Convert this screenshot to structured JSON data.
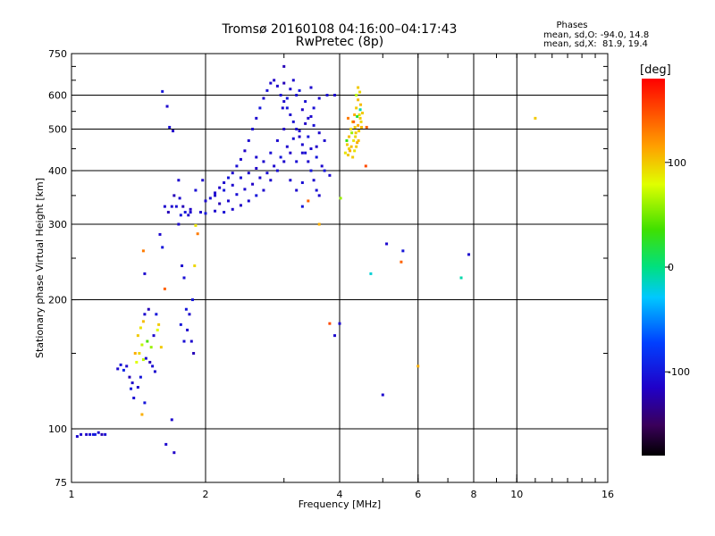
{
  "title": "Tromsø 20160108 04:16:00–04:17:43",
  "subtitle": "RwPretec (8p)",
  "stats": {
    "title": "Phases",
    "line_o": "mean, sd,O: -94.0, 14.8",
    "line_x": "mean, sd,X:  81.9, 19.4"
  },
  "colorbar": {
    "unit": "[deg]",
    "ticks": [
      {
        "value": 100,
        "label": "100"
      },
      {
        "value": 0,
        "label": "0"
      },
      {
        "value": -100,
        "label": "-100"
      }
    ],
    "range": [
      -180,
      180
    ]
  },
  "chart_data": {
    "type": "scatter",
    "xlabel": "Frequency [MHz]",
    "ylabel": "Stationary phase Virtual Height [km]",
    "xscale": "log",
    "yscale": "log",
    "xlim": [
      1,
      16
    ],
    "ylim": [
      75,
      750
    ],
    "xticks": [
      {
        "v": 1,
        "label": "1"
      },
      {
        "v": 2,
        "label": "2"
      },
      {
        "v": 4,
        "label": "4"
      },
      {
        "v": 6,
        "label": "6"
      },
      {
        "v": 8,
        "label": "8"
      },
      {
        "v": 10,
        "label": "10"
      },
      {
        "v": 16,
        "label": "16"
      }
    ],
    "yticks": [
      {
        "v": 75,
        "label": "75"
      },
      {
        "v": 100,
        "label": "100"
      },
      {
        "v": 200,
        "label": "200"
      },
      {
        "v": 300,
        "label": "300"
      },
      {
        "v": 400,
        "label": "400"
      },
      {
        "v": 500,
        "label": "500"
      },
      {
        "v": 600,
        "label": "600"
      },
      {
        "v": 750,
        "label": "750"
      }
    ],
    "grid": true,
    "grid_x": [
      2,
      4,
      6,
      8,
      10
    ],
    "grid_y": [
      100,
      200,
      300,
      400,
      500,
      600
    ],
    "points": [
      [
        1.05,
        97,
        -110
      ],
      [
        1.08,
        97,
        -115
      ],
      [
        1.1,
        97,
        -105
      ],
      [
        1.12,
        97,
        -100
      ],
      [
        1.15,
        98,
        -110
      ],
      [
        1.17,
        97,
        -120
      ],
      [
        1.19,
        97,
        -105
      ],
      [
        1.03,
        96,
        -110
      ],
      [
        1.13,
        97,
        -95
      ],
      [
        1.27,
        138,
        -110
      ],
      [
        1.29,
        141,
        -100
      ],
      [
        1.31,
        137,
        -90
      ],
      [
        1.33,
        140,
        -110
      ],
      [
        1.35,
        132,
        -120
      ],
      [
        1.37,
        128,
        -110
      ],
      [
        1.36,
        124,
        -95
      ],
      [
        1.38,
        118,
        -105
      ],
      [
        1.4,
        143,
        80
      ],
      [
        1.42,
        150,
        95
      ],
      [
        1.44,
        157,
        70
      ],
      [
        1.41,
        165,
        100
      ],
      [
        1.43,
        172,
        90
      ],
      [
        1.45,
        178,
        105
      ],
      [
        1.46,
        185,
        -110
      ],
      [
        1.39,
        150,
        110
      ],
      [
        1.47,
        146,
        -110
      ],
      [
        1.5,
        143,
        -120
      ],
      [
        1.52,
        140,
        -105
      ],
      [
        1.54,
        136,
        -110
      ],
      [
        1.48,
        160,
        40
      ],
      [
        1.51,
        155,
        60
      ],
      [
        1.53,
        165,
        -110
      ],
      [
        1.55,
        185,
        -100
      ],
      [
        1.57,
        175,
        100
      ],
      [
        1.49,
        190,
        -120
      ],
      [
        1.44,
        108,
        110
      ],
      [
        1.46,
        115,
        -100
      ],
      [
        1.45,
        260,
        130
      ],
      [
        1.46,
        230,
        -110
      ],
      [
        1.59,
        155,
        100
      ],
      [
        1.56,
        170,
        80
      ],
      [
        1.41,
        125,
        -110
      ],
      [
        1.43,
        132,
        -100
      ],
      [
        1.45,
        145,
        70
      ],
      [
        1.6,
        612,
        -100
      ],
      [
        1.64,
        565,
        -110
      ],
      [
        1.66,
        505,
        -105
      ],
      [
        1.69,
        495,
        -115
      ],
      [
        1.62,
        330,
        -110
      ],
      [
        1.65,
        320,
        -120
      ],
      [
        1.58,
        284,
        -110
      ],
      [
        1.6,
        265,
        -100
      ],
      [
        1.62,
        212,
        140
      ],
      [
        1.75,
        345,
        -110
      ],
      [
        1.72,
        330,
        -105
      ],
      [
        1.78,
        330,
        -120
      ],
      [
        1.74,
        300,
        -110
      ],
      [
        1.8,
        320,
        -100
      ],
      [
        1.83,
        315,
        -110
      ],
      [
        1.85,
        325,
        -115
      ],
      [
        1.77,
        240,
        -110
      ],
      [
        1.79,
        225,
        -105
      ],
      [
        1.81,
        190,
        -100
      ],
      [
        1.84,
        185,
        -110
      ],
      [
        1.86,
        160,
        -110
      ],
      [
        1.88,
        150,
        -120
      ],
      [
        1.79,
        160,
        -105
      ],
      [
        1.82,
        170,
        -110
      ],
      [
        1.76,
        175,
        -100
      ],
      [
        1.9,
        298,
        90
      ],
      [
        1.92,
        285,
        130
      ],
      [
        1.87,
        200,
        -100
      ],
      [
        1.89,
        240,
        95
      ],
      [
        1.68,
        105,
        -110
      ],
      [
        1.63,
        92,
        -110
      ],
      [
        1.7,
        88,
        -115
      ],
      [
        1.74,
        380,
        -110
      ],
      [
        2.0,
        340,
        -110
      ],
      [
        2.05,
        345,
        -105
      ],
      [
        2.1,
        355,
        -110
      ],
      [
        2.15,
        365,
        -115
      ],
      [
        2.2,
        375,
        -110
      ],
      [
        2.25,
        385,
        -100
      ],
      [
        2.3,
        395,
        -110
      ],
      [
        2.35,
        410,
        -105
      ],
      [
        2.4,
        425,
        -110
      ],
      [
        2.45,
        445,
        -115
      ],
      [
        2.5,
        470,
        -110
      ],
      [
        2.55,
        500,
        -105
      ],
      [
        2.6,
        530,
        -110
      ],
      [
        2.65,
        560,
        -100
      ],
      [
        2.7,
        590,
        -110
      ],
      [
        2.75,
        615,
        -105
      ],
      [
        2.8,
        640,
        -110
      ],
      [
        2.85,
        650,
        -115
      ],
      [
        2.9,
        630,
        -110
      ],
      [
        2.95,
        600,
        -105
      ],
      [
        3.0,
        580,
        -110
      ],
      [
        3.05,
        560,
        -100
      ],
      [
        3.1,
        540,
        -110
      ],
      [
        3.15,
        520,
        -105
      ],
      [
        3.2,
        500,
        -110
      ],
      [
        3.25,
        480,
        -115
      ],
      [
        3.3,
        460,
        -110
      ],
      [
        3.35,
        440,
        -105
      ],
      [
        3.4,
        420,
        -110
      ],
      [
        3.45,
        400,
        -100
      ],
      [
        3.5,
        380,
        -110
      ],
      [
        3.55,
        360,
        -105
      ],
      [
        3.6,
        350,
        -110
      ],
      [
        3.1,
        620,
        -110
      ],
      [
        3.2,
        600,
        -105
      ],
      [
        3.05,
        590,
        -100
      ],
      [
        2.98,
        560,
        -110
      ],
      [
        3.3,
        555,
        -115
      ],
      [
        3.4,
        530,
        -110
      ],
      [
        3.5,
        510,
        -105
      ],
      [
        3.6,
        490,
        -110
      ],
      [
        3.7,
        470,
        -110
      ],
      [
        3.4,
        480,
        -100
      ],
      [
        3.55,
        455,
        -115
      ],
      [
        2.8,
        380,
        -110
      ],
      [
        2.9,
        400,
        -105
      ],
      [
        3.0,
        420,
        -110
      ],
      [
        3.1,
        440,
        -115
      ],
      [
        3.2,
        360,
        -110
      ],
      [
        3.3,
        375,
        -105
      ],
      [
        2.7,
        360,
        -110
      ],
      [
        2.6,
        350,
        -100
      ],
      [
        2.5,
        340,
        -110
      ],
      [
        2.4,
        332,
        -115
      ],
      [
        2.3,
        325,
        -110
      ],
      [
        2.2,
        320,
        -105
      ],
      [
        2.1,
        322,
        -110
      ],
      [
        2.0,
        318,
        -100
      ],
      [
        1.95,
        320,
        -110
      ],
      [
        2.15,
        335,
        -120
      ],
      [
        2.25,
        340,
        -110
      ],
      [
        2.35,
        352,
        -105
      ],
      [
        2.45,
        362,
        -110
      ],
      [
        2.55,
        372,
        -115
      ],
      [
        2.65,
        385,
        -110
      ],
      [
        2.75,
        395,
        -105
      ],
      [
        2.85,
        410,
        -110
      ],
      [
        2.95,
        430,
        -100
      ],
      [
        3.05,
        455,
        -110
      ],
      [
        3.15,
        475,
        -105
      ],
      [
        3.25,
        495,
        -110
      ],
      [
        3.35,
        515,
        -115
      ],
      [
        3.45,
        535,
        -110
      ],
      [
        3.5,
        560,
        -105
      ],
      [
        3.6,
        590,
        -110
      ],
      [
        3.75,
        600,
        -105
      ],
      [
        3.0,
        640,
        -120
      ],
      [
        3.15,
        650,
        -110
      ],
      [
        3.25,
        615,
        -100
      ],
      [
        3.45,
        625,
        -110
      ],
      [
        3.35,
        580,
        -105
      ],
      [
        2.9,
        470,
        -110
      ],
      [
        3.0,
        500,
        -115
      ],
      [
        3.1,
        380,
        -110
      ],
      [
        3.2,
        420,
        -105
      ],
      [
        3.3,
        440,
        -110
      ],
      [
        3.45,
        450,
        -110
      ],
      [
        3.55,
        430,
        -100
      ],
      [
        3.65,
        410,
        -110
      ],
      [
        2.7,
        420,
        -110
      ],
      [
        2.8,
        440,
        -105
      ],
      [
        2.6,
        405,
        -115
      ],
      [
        2.5,
        395,
        -110
      ],
      [
        2.4,
        385,
        -105
      ],
      [
        2.3,
        370,
        -110
      ],
      [
        2.2,
        360,
        -100
      ],
      [
        2.1,
        350,
        -110
      ],
      [
        3.0,
        700,
        -120
      ],
      [
        2.6,
        430,
        -110
      ],
      [
        3.7,
        400,
        -100
      ],
      [
        3.8,
        390,
        -110
      ],
      [
        3.4,
        340,
        140
      ],
      [
        3.6,
        300,
        110
      ],
      [
        3.3,
        330,
        -100
      ],
      [
        3.9,
        600,
        -110
      ],
      [
        4.12,
        440,
        90
      ],
      [
        4.16,
        460,
        100
      ],
      [
        4.2,
        480,
        105
      ],
      [
        4.24,
        500,
        95
      ],
      [
        4.28,
        520,
        100
      ],
      [
        4.32,
        540,
        110
      ],
      [
        4.36,
        560,
        100
      ],
      [
        4.4,
        585,
        105
      ],
      [
        4.44,
        610,
        95
      ],
      [
        4.3,
        470,
        90
      ],
      [
        4.35,
        490,
        100
      ],
      [
        4.4,
        510,
        110
      ],
      [
        4.45,
        530,
        100
      ],
      [
        4.2,
        450,
        95
      ],
      [
        4.25,
        455,
        105
      ],
      [
        4.18,
        435,
        100
      ],
      [
        4.32,
        445,
        90
      ],
      [
        4.38,
        465,
        110
      ],
      [
        4.42,
        495,
        100
      ],
      [
        4.47,
        520,
        95
      ],
      [
        4.5,
        545,
        100
      ],
      [
        4.46,
        570,
        105
      ],
      [
        4.28,
        430,
        100
      ],
      [
        4.36,
        600,
        70
      ],
      [
        4.4,
        625,
        100
      ],
      [
        4.22,
        445,
        110
      ],
      [
        4.34,
        480,
        95
      ],
      [
        4.48,
        505,
        105
      ],
      [
        4.43,
        540,
        90
      ],
      [
        4.33,
        505,
        100
      ],
      [
        4.41,
        470,
        105
      ],
      [
        4.15,
        470,
        30
      ],
      [
        4.26,
        490,
        60
      ],
      [
        4.3,
        520,
        140
      ],
      [
        4.38,
        535,
        20
      ],
      [
        4.45,
        555,
        -10
      ],
      [
        4.18,
        530,
        130
      ],
      [
        4.02,
        345,
        60
      ],
      [
        4.6,
        505,
        140
      ],
      [
        4.58,
        410,
        150
      ],
      [
        4.36,
        455,
        100
      ],
      [
        4.0,
        176,
        -110
      ],
      [
        3.8,
        176,
        150
      ],
      [
        3.9,
        165,
        -110
      ],
      [
        4.7,
        230,
        -20
      ],
      [
        5.1,
        270,
        -110
      ],
      [
        5.0,
        120,
        -110
      ],
      [
        5.5,
        245,
        140
      ],
      [
        5.55,
        260,
        -100
      ],
      [
        6.0,
        140,
        110
      ],
      [
        7.5,
        225,
        -10
      ],
      [
        7.8,
        255,
        -110
      ],
      [
        11.0,
        530,
        100
      ],
      [
        1.97,
        380,
        -110
      ],
      [
        1.9,
        360,
        -105
      ],
      [
        1.85,
        320,
        -110
      ],
      [
        1.76,
        315,
        -100
      ],
      [
        1.7,
        350,
        -120
      ],
      [
        1.68,
        330,
        -110
      ]
    ]
  }
}
